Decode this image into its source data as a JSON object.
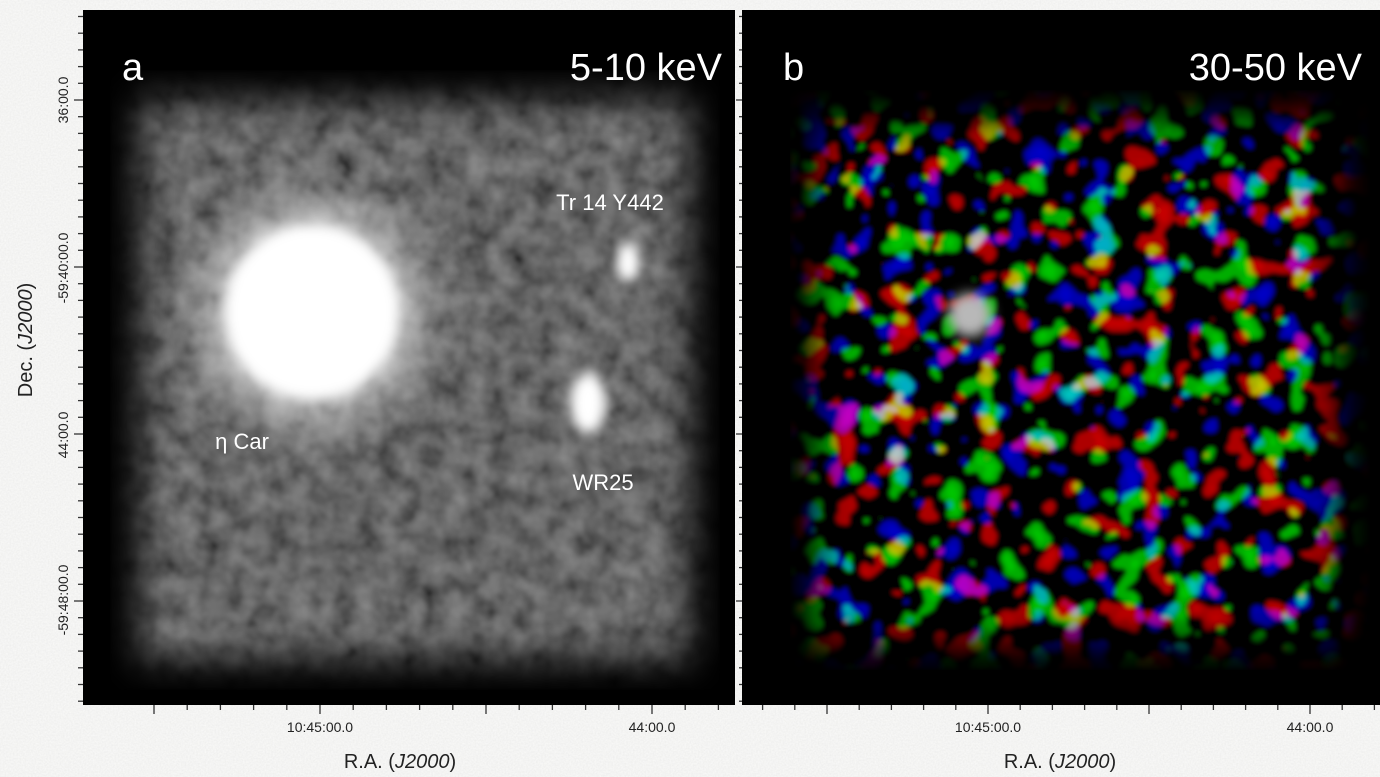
{
  "panels": [
    {
      "label": "a",
      "energy": "5-10 keV",
      "annotations": [
        "Tr 14 Y442",
        "η Car",
        "WR25"
      ],
      "x_ticks": [
        "10:45:00.0",
        "44:00.0"
      ],
      "y_ticks": [
        "36:00.0",
        "-59:40:00.0",
        "44:00.0",
        "-59:48:00.0"
      ]
    },
    {
      "label": "b",
      "energy": "30-50 keV",
      "x_ticks": [
        "10:45:00.0",
        "44:00.0"
      ]
    }
  ],
  "x_label": {
    "text": "R.A. (",
    "italic": "J2000",
    "suffix": ")"
  },
  "y_label": {
    "text": "Dec. (",
    "italic": "J2000",
    "suffix": ")"
  }
}
